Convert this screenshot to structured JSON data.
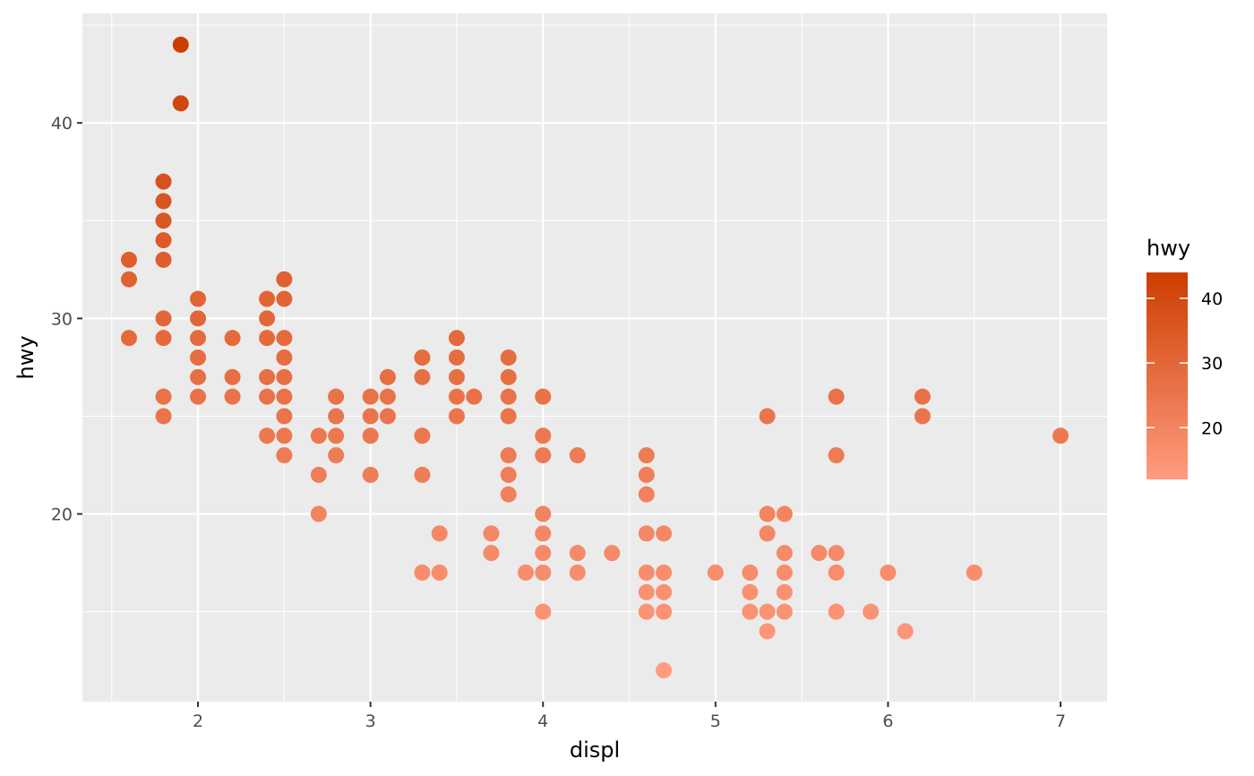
{
  "chart_data": {
    "type": "scatter",
    "xlabel": "displ",
    "ylabel": "hwy",
    "xlim": [
      1.33,
      7.27
    ],
    "ylim": [
      10.4,
      45.6
    ],
    "x_ticks": [
      2,
      3,
      4,
      5,
      6,
      7
    ],
    "y_ticks": [
      20,
      30,
      40
    ],
    "grid": true,
    "legend": {
      "title": "hwy",
      "placement": "right",
      "range": [
        12,
        44
      ],
      "ticks": [
        20,
        30,
        40
      ],
      "low_color": "#ff9c80",
      "high_color": "#cc3d00"
    },
    "points": [
      [
        1.6,
        33
      ],
      [
        1.6,
        32
      ],
      [
        1.6,
        29
      ],
      [
        1.8,
        37
      ],
      [
        1.8,
        36
      ],
      [
        1.8,
        35
      ],
      [
        1.8,
        34
      ],
      [
        1.8,
        33
      ],
      [
        1.8,
        30
      ],
      [
        1.8,
        29
      ],
      [
        1.8,
        26
      ],
      [
        1.8,
        25
      ],
      [
        1.9,
        44
      ],
      [
        1.9,
        41
      ],
      [
        2.0,
        31
      ],
      [
        2.0,
        30
      ],
      [
        2.0,
        29
      ],
      [
        2.0,
        28
      ],
      [
        2.0,
        27
      ],
      [
        2.0,
        26
      ],
      [
        2.2,
        29
      ],
      [
        2.2,
        27
      ],
      [
        2.2,
        26
      ],
      [
        2.4,
        31
      ],
      [
        2.4,
        30
      ],
      [
        2.4,
        29
      ],
      [
        2.4,
        27
      ],
      [
        2.4,
        26
      ],
      [
        2.4,
        24
      ],
      [
        2.5,
        32
      ],
      [
        2.5,
        31
      ],
      [
        2.5,
        29
      ],
      [
        2.5,
        28
      ],
      [
        2.5,
        27
      ],
      [
        2.5,
        26
      ],
      [
        2.5,
        25
      ],
      [
        2.5,
        24
      ],
      [
        2.5,
        23
      ],
      [
        2.7,
        24
      ],
      [
        2.7,
        22
      ],
      [
        2.7,
        20
      ],
      [
        2.8,
        26
      ],
      [
        2.8,
        25
      ],
      [
        2.8,
        24
      ],
      [
        2.8,
        23
      ],
      [
        3.0,
        26
      ],
      [
        3.0,
        25
      ],
      [
        3.0,
        24
      ],
      [
        3.0,
        22
      ],
      [
        3.1,
        27
      ],
      [
        3.1,
        26
      ],
      [
        3.1,
        25
      ],
      [
        3.3,
        28
      ],
      [
        3.3,
        27
      ],
      [
        3.3,
        24
      ],
      [
        3.3,
        22
      ],
      [
        3.3,
        17
      ],
      [
        3.4,
        19
      ],
      [
        3.4,
        17
      ],
      [
        3.5,
        29
      ],
      [
        3.5,
        28
      ],
      [
        3.5,
        27
      ],
      [
        3.5,
        26
      ],
      [
        3.5,
        25
      ],
      [
        3.6,
        26
      ],
      [
        3.7,
        19
      ],
      [
        3.7,
        18
      ],
      [
        3.8,
        28
      ],
      [
        3.8,
        27
      ],
      [
        3.8,
        26
      ],
      [
        3.8,
        25
      ],
      [
        3.8,
        23
      ],
      [
        3.8,
        22
      ],
      [
        3.8,
        21
      ],
      [
        3.9,
        17
      ],
      [
        4.0,
        26
      ],
      [
        4.0,
        24
      ],
      [
        4.0,
        23
      ],
      [
        4.0,
        20
      ],
      [
        4.0,
        19
      ],
      [
        4.0,
        18
      ],
      [
        4.0,
        17
      ],
      [
        4.0,
        15
      ],
      [
        4.2,
        23
      ],
      [
        4.2,
        18
      ],
      [
        4.2,
        17
      ],
      [
        4.4,
        18
      ],
      [
        4.6,
        23
      ],
      [
        4.6,
        22
      ],
      [
        4.6,
        21
      ],
      [
        4.6,
        19
      ],
      [
        4.6,
        17
      ],
      [
        4.6,
        16
      ],
      [
        4.6,
        15
      ],
      [
        4.7,
        19
      ],
      [
        4.7,
        17
      ],
      [
        4.7,
        16
      ],
      [
        4.7,
        15
      ],
      [
        4.7,
        12
      ],
      [
        5.0,
        17
      ],
      [
        5.2,
        17
      ],
      [
        5.2,
        16
      ],
      [
        5.2,
        15
      ],
      [
        5.3,
        25
      ],
      [
        5.3,
        20
      ],
      [
        5.3,
        19
      ],
      [
        5.3,
        15
      ],
      [
        5.3,
        14
      ],
      [
        5.4,
        20
      ],
      [
        5.4,
        18
      ],
      [
        5.4,
        17
      ],
      [
        5.4,
        16
      ],
      [
        5.4,
        15
      ],
      [
        5.6,
        18
      ],
      [
        5.7,
        26
      ],
      [
        5.7,
        23
      ],
      [
        5.7,
        18
      ],
      [
        5.7,
        17
      ],
      [
        5.7,
        15
      ],
      [
        5.9,
        15
      ],
      [
        6.0,
        17
      ],
      [
        6.1,
        14
      ],
      [
        6.2,
        26
      ],
      [
        6.2,
        25
      ],
      [
        6.5,
        17
      ],
      [
        7.0,
        24
      ]
    ]
  },
  "colors": {
    "panel_bg": "#ebebeb",
    "grid": "#ffffff"
  }
}
